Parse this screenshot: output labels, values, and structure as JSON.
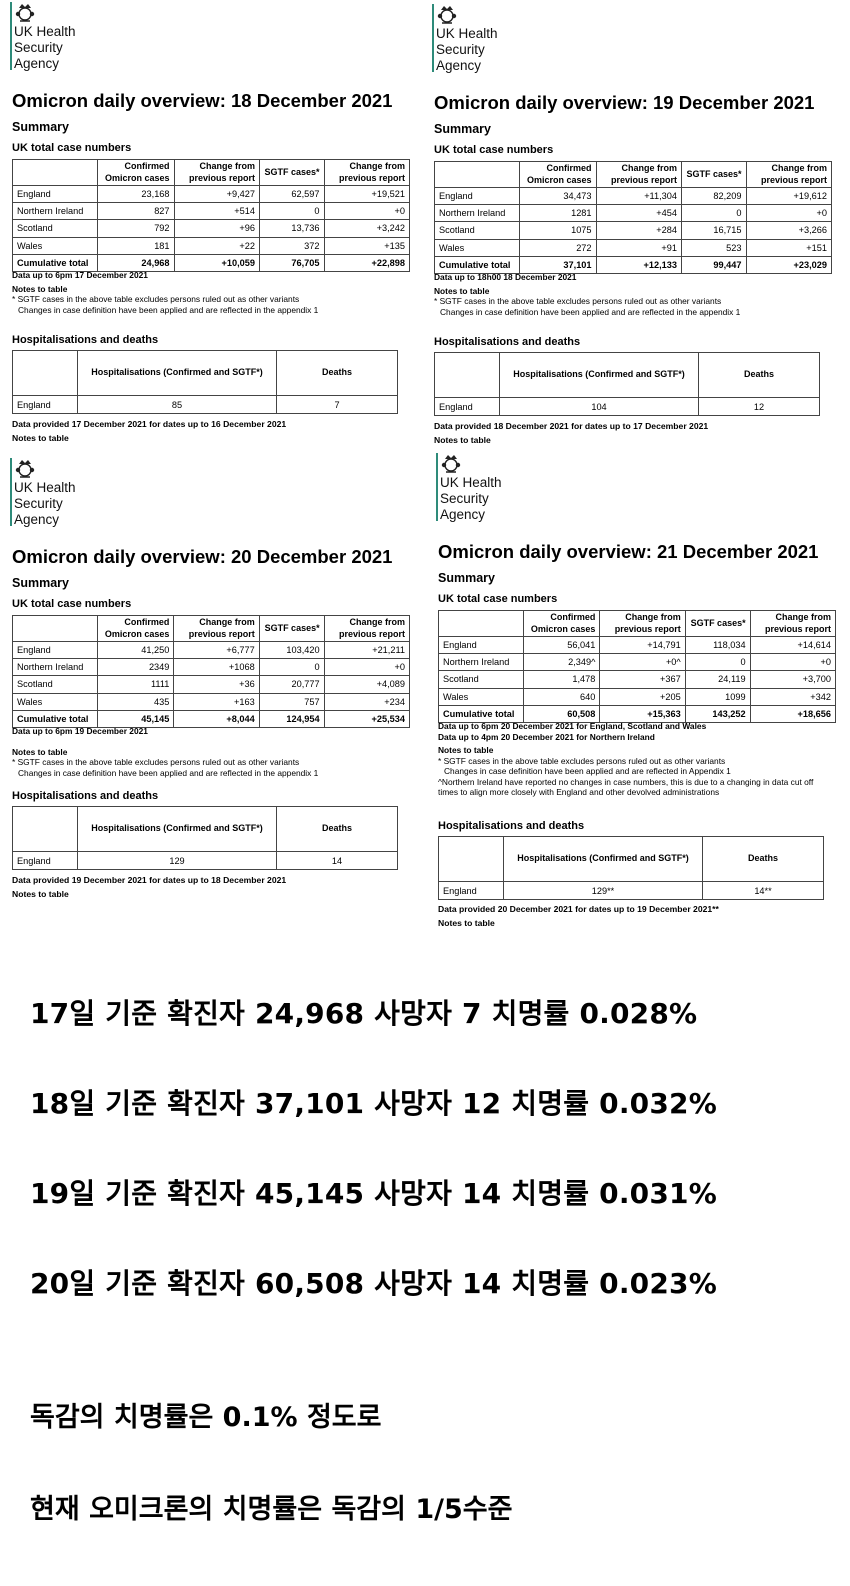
{
  "org": {
    "line1": "UK Health",
    "line2": "Security",
    "line3": "Agency"
  },
  "common": {
    "summary": "Summary",
    "uk_total": "UK total case numbers",
    "col_country": "",
    "col_confirmed": "Confirmed Omicron cases",
    "col_change1": "Change from previous report",
    "col_sgtf": "SGTF cases*",
    "col_change2": "Change from previous report",
    "notes_title": "Notes to table",
    "note1": "* SGTF cases in the above table excludes persons ruled out as other variants",
    "hosp_title": "Hospitalisations and deaths",
    "hosp_col": "Hospitalisations (Confirmed and SGTF*)",
    "deaths_col": "Deaths"
  },
  "panels": [
    {
      "title": "Omicron daily overview: 18 December 2021",
      "rows": [
        [
          "England",
          "23,168",
          "+9,427",
          "62,597",
          "+19,521"
        ],
        [
          "Northern Ireland",
          "827",
          "+514",
          "0",
          "+0"
        ],
        [
          "Scotland",
          "792",
          "+96",
          "13,736",
          "+3,242"
        ],
        [
          "Wales",
          "181",
          "+22",
          "372",
          "+135"
        ],
        [
          "Cumulative total",
          "24,968",
          "+10,059",
          "76,705",
          "+22,898"
        ]
      ],
      "data_up_to": "Data up to 6pm 17 December 2021",
      "note2": "Changes in case definition have been applied and are reflected in the appendix 1",
      "hosp_row": [
        "England",
        "85",
        "7"
      ],
      "data_provided": "Data provided 17 December 2021 for dates up to 16 December 2021",
      "notes_after": "Notes to table"
    },
    {
      "title": "Omicron daily overview: 19 December 2021",
      "rows": [
        [
          "England",
          "34,473",
          "+11,304",
          "82,209",
          "+19,612"
        ],
        [
          "Northern Ireland",
          "1281",
          "+454",
          "0",
          "+0"
        ],
        [
          "Scotland",
          "1075",
          "+284",
          "16,715",
          "+3,266"
        ],
        [
          "Wales",
          "272",
          "+91",
          "523",
          "+151"
        ],
        [
          "Cumulative total",
          "37,101",
          "+12,133",
          "99,447",
          "+23,029"
        ]
      ],
      "data_up_to": "Data up to 18h00 18 December 2021",
      "note2": "Changes in case definition have been applied and are reflected in the appendix 1",
      "hosp_row": [
        "England",
        "104",
        "12"
      ],
      "data_provided": "Data provided 18 December 2021 for dates up to 17 December 2021",
      "notes_after": "Notes to table"
    },
    {
      "title": "Omicron daily overview: 20 December 2021",
      "rows": [
        [
          "England",
          "41,250",
          "+6,777",
          "103,420",
          "+21,211"
        ],
        [
          "Northern Ireland",
          "2349",
          "+1068",
          "0",
          "+0"
        ],
        [
          "Scotland",
          "1111",
          "+36",
          "20,777",
          "+4,089"
        ],
        [
          "Wales",
          "435",
          "+163",
          "757",
          "+234"
        ],
        [
          "Cumulative total",
          "45,145",
          "+8,044",
          "124,954",
          "+25,534"
        ]
      ],
      "data_up_to": "Data up to 6pm 19 December 2021",
      "note2": "Changes in case definition have been applied and are reflected in the appendix 1",
      "hosp_row": [
        "England",
        "129",
        "14"
      ],
      "data_provided": "Data provided 19 December 2021 for dates up to 18 December 2021",
      "notes_after": "Notes to table"
    },
    {
      "title": "Omicron daily overview: 21 December 2021",
      "rows": [
        [
          "England",
          "56,041",
          "+14,791",
          "118,034",
          "+14,614"
        ],
        [
          "Northern Ireland",
          "2,349^",
          "+0^",
          "0",
          "+0"
        ],
        [
          "Scotland",
          "1,478",
          "+367",
          "24,119",
          "+3,700"
        ],
        [
          "Wales",
          "640",
          "+205",
          "1099",
          "+342"
        ],
        [
          "Cumulative total",
          "60,508",
          "+15,363",
          "143,252",
          "+18,656"
        ]
      ],
      "data_up_to": "Data up to 6pm 20 December 2021 for England, Scotland and Wales",
      "data_up_to2": "Data up to 4pm 20 December 2021 for Northern Ireland",
      "note2": "Changes in case definition have been applied and are reflected in Appendix 1",
      "note3": "^Northern Ireland have reported no changes in case numbers, this is due to a changing in data cut off times to align more closely with England and other devolved administrations",
      "hosp_row": [
        "England",
        "129**",
        "14**"
      ],
      "data_provided": "Data provided 20 December 2021 for dates up to 19 December 2021**",
      "notes_after": "Notes to table"
    }
  ],
  "korean": {
    "line1": "17일 기준 확진자 24,968 사망자 7 치명률 0.028%",
    "line2": "18일 기준 확진자 37,101 사망자 12 치명률 0.032%",
    "line3": "19일 기준 확진자 45,145 사망자 14 치명률 0.031%",
    "line4": "20일 기준 확진자 60,508 사망자 14 치명률 0.023%",
    "line5": "독감의 치명률은 0.1% 정도로",
    "line6": "현재 오미크론의 치명률은 독감의 1/5수준"
  }
}
